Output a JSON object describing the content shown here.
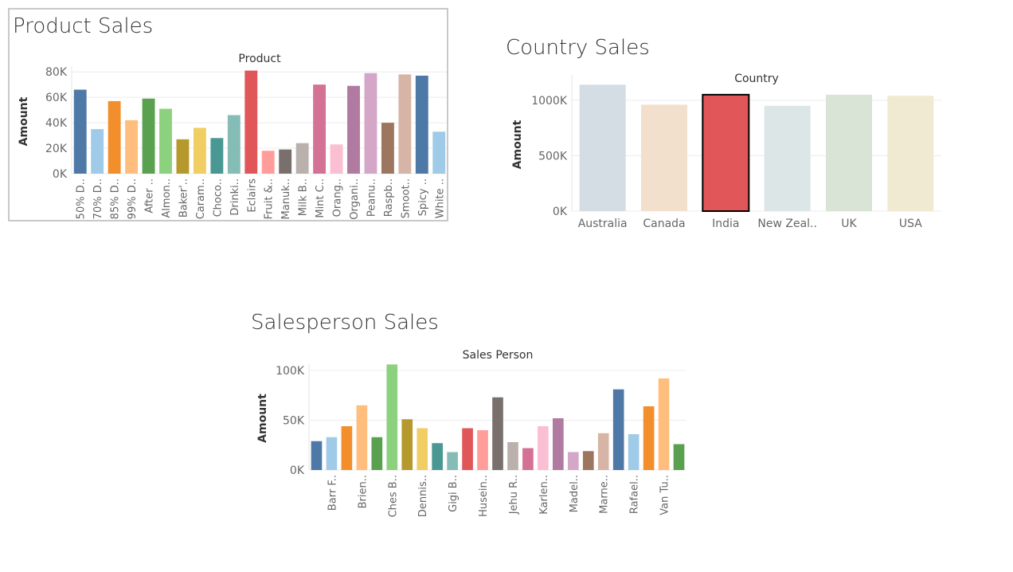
{
  "chart_data": [
    {
      "type": "bar",
      "title": "Product Sales",
      "xlabel": "Product",
      "ylabel": "Amount",
      "ylim": [
        0,
        82000
      ],
      "ticks": [
        0,
        20000,
        40000,
        60000,
        80000
      ],
      "tick_labels": [
        "0K",
        "20K",
        "40K",
        "60K",
        "80K"
      ],
      "grid": true,
      "categories": [
        "50% D..",
        "70% D..",
        "85% D..",
        "99% D..",
        "After ..",
        "Almon..",
        "Baker'..",
        "Caram..",
        "Choco..",
        "Drinki..",
        "Eclairs",
        "Fruit &..",
        "Manuk..",
        "Milk B..",
        "Mint C..",
        "Orang..",
        "Organi..",
        "Peanu..",
        "Raspb..",
        "Smoot..",
        "Spicy ..",
        "White .."
      ],
      "values": [
        66000,
        35000,
        57000,
        42000,
        59000,
        51000,
        27000,
        36000,
        28000,
        46000,
        81000,
        18000,
        19000,
        24000,
        70000,
        23000,
        69000,
        79000,
        40000,
        78000,
        77000,
        33000
      ],
      "colors": [
        "#4e79a7",
        "#a0cbe8",
        "#f28e2b",
        "#ffbe7d",
        "#59a14f",
        "#8cd17d",
        "#b6992d",
        "#f1ce63",
        "#499894",
        "#86bcb6",
        "#e15759",
        "#ff9d9a",
        "#79706e",
        "#bab0ac",
        "#d37295",
        "#fabfd2",
        "#b07aa1",
        "#d4a6c8",
        "#9d7660",
        "#d7b5a6",
        "#4e79a7",
        "#a0cbe8"
      ]
    },
    {
      "type": "bar",
      "title": "Country Sales",
      "xlabel": "Country",
      "ylabel": "Amount",
      "ylim": [
        0,
        1200000
      ],
      "ticks": [
        0,
        500000,
        1000000
      ],
      "tick_labels": [
        "0K",
        "500K",
        "1000K"
      ],
      "grid": true,
      "categories": [
        "Australia",
        "Canada",
        "India",
        "New Zeal..",
        "UK",
        "USA"
      ],
      "values": [
        1140000,
        960000,
        1050000,
        950000,
        1050000,
        1040000
      ],
      "colors": [
        "#d4dde4",
        "#f3e0cc",
        "#e15759",
        "#dce6e6",
        "#d9e3d6",
        "#f1ead2"
      ],
      "highlight": "India"
    },
    {
      "type": "bar",
      "title": "Salesperson Sales",
      "xlabel": "Sales Person",
      "ylabel": "Amount",
      "ylim": [
        0,
        104000
      ],
      "ticks": [
        0,
        50000,
        100000
      ],
      "tick_labels": [
        "0K",
        "50K",
        "100K"
      ],
      "grid": true,
      "categories": [
        "",
        "Barr F..",
        "",
        "Brien..",
        "",
        "Ches B..",
        "",
        "Dennis..",
        "",
        "Gigi B..",
        "",
        "Husein..",
        "",
        "Jehu R..",
        "",
        "Karlen..",
        "",
        "Madel..",
        "",
        "Marne..",
        "",
        "Rafael..",
        "",
        "Van Tu..",
        ""
      ],
      "values": [
        29000,
        33000,
        44000,
        65000,
        33000,
        106000,
        51000,
        42000,
        27000,
        18000,
        42000,
        40000,
        73000,
        28000,
        22000,
        44000,
        52000,
        18000,
        19000,
        37000,
        81000,
        36000,
        64000,
        92000,
        26000
      ],
      "colors": [
        "#4e79a7",
        "#a0cbe8",
        "#f28e2b",
        "#ffbe7d",
        "#59a14f",
        "#8cd17d",
        "#b6992d",
        "#f1ce63",
        "#499894",
        "#86bcb6",
        "#e15759",
        "#ff9d9a",
        "#79706e",
        "#bab0ac",
        "#d37295",
        "#fabfd2",
        "#b07aa1",
        "#d4a6c8",
        "#9d7660",
        "#d7b5a6",
        "#4e79a7",
        "#a0cbe8",
        "#f28e2b",
        "#ffbe7d",
        "#59a14f"
      ]
    }
  ]
}
